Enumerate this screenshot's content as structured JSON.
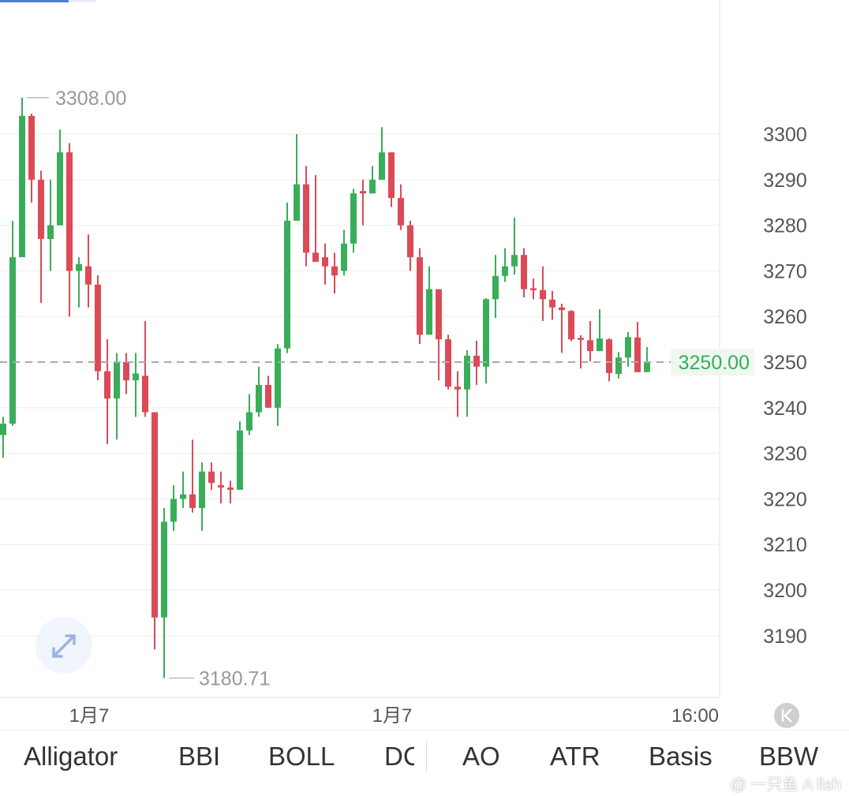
{
  "chart_data": {
    "type": "candlestick",
    "yticks": [
      3300,
      3290,
      3280,
      3270,
      3260,
      3250,
      3240,
      3230,
      3220,
      3210,
      3200,
      3190
    ],
    "ylim": [
      3175,
      3315
    ],
    "xlabels": [
      "1月7",
      "1月7",
      "16:00"
    ],
    "last_price": "3250.00",
    "high_label": "3308.00",
    "low_label": "3180.71",
    "grid": true,
    "colors": {
      "up": "#3aad5a",
      "down": "#dc4a57",
      "last_price": "#3aad5a"
    },
    "candles": [
      [
        3234,
        3238,
        3229,
        3236.5
      ],
      [
        3236.5,
        3281,
        3236,
        3273
      ],
      [
        3273,
        3308,
        3273,
        3304
      ],
      [
        3304,
        3304.5,
        3285,
        3290
      ],
      [
        3290,
        3292,
        3263,
        3277
      ],
      [
        3277,
        3290,
        3270,
        3280
      ],
      [
        3280,
        3301,
        3280,
        3296
      ],
      [
        3296,
        3298,
        3260,
        3270
      ],
      [
        3270,
        3273,
        3262,
        3271.5
      ],
      [
        3271,
        3278,
        3262,
        3267
      ],
      [
        3267,
        3269,
        3246,
        3248
      ],
      [
        3248,
        3255,
        3232,
        3242
      ],
      [
        3242,
        3252,
        3233,
        3250
      ],
      [
        3250,
        3252,
        3243,
        3246
      ],
      [
        3246,
        3252,
        3238,
        3247.5
      ],
      [
        3247,
        3259,
        3238,
        3239
      ],
      [
        3239,
        3239,
        3187,
        3194
      ],
      [
        3194,
        3218,
        3180.71,
        3215
      ],
      [
        3215,
        3223,
        3213,
        3220
      ],
      [
        3220,
        3226,
        3218,
        3221
      ],
      [
        3221,
        3233,
        3217,
        3218
      ],
      [
        3218,
        3228,
        3213,
        3226
      ],
      [
        3226,
        3228,
        3222,
        3223.5
      ],
      [
        3223,
        3226,
        3219,
        3222.5
      ],
      [
        3222.5,
        3224,
        3219,
        3222
      ],
      [
        3222,
        3237,
        3222,
        3235
      ],
      [
        3235,
        3243,
        3234,
        3239
      ],
      [
        3239,
        3249,
        3238,
        3245
      ],
      [
        3245,
        3247,
        3240,
        3240
      ],
      [
        3240,
        3254,
        3236,
        3253
      ],
      [
        3253,
        3285,
        3252,
        3281
      ],
      [
        3281,
        3300,
        3281,
        3289
      ],
      [
        3289,
        3293,
        3271,
        3274
      ],
      [
        3274,
        3291,
        3272,
        3272
      ],
      [
        3273,
        3276,
        3267,
        3271
      ],
      [
        3271,
        3274,
        3265,
        3269
      ],
      [
        3270,
        3279,
        3269,
        3276
      ],
      [
        3276,
        3288,
        3274,
        3287
      ],
      [
        3287.5,
        3290,
        3280,
        3287
      ],
      [
        3287,
        3293,
        3287,
        3290
      ],
      [
        3290,
        3301.5,
        3290,
        3296
      ],
      [
        3296,
        3296,
        3284,
        3286
      ],
      [
        3286,
        3289,
        3279,
        3280
      ],
      [
        3280,
        3281,
        3270,
        3273
      ],
      [
        3273,
        3275,
        3254,
        3256
      ],
      [
        3256,
        3271,
        3256,
        3266
      ],
      [
        3266,
        3266,
        3246,
        3255
      ],
      [
        3255,
        3256,
        3244,
        3244.6
      ],
      [
        3244.6,
        3248,
        3238,
        3244
      ],
      [
        3244,
        3252.6,
        3238,
        3251.4
      ],
      [
        3251.4,
        3254.7,
        3245,
        3249
      ],
      [
        3249,
        3264,
        3245.3,
        3263.8
      ],
      [
        3263.8,
        3273.5,
        3259.7,
        3268.9
      ],
      [
        3268.9,
        3275,
        3267.6,
        3271
      ],
      [
        3271,
        3281.7,
        3269.2,
        3273.5
      ],
      [
        3273.5,
        3275,
        3264.2,
        3266
      ],
      [
        3266.2,
        3268.3,
        3263.8,
        3266
      ],
      [
        3265.8,
        3271,
        3259,
        3263.8
      ],
      [
        3263.7,
        3265.6,
        3259.3,
        3262
      ],
      [
        3262,
        3262.8,
        3252,
        3261.4
      ],
      [
        3261.2,
        3261.4,
        3254.6,
        3255
      ],
      [
        3255.3,
        3255.9,
        3248.6,
        3255.2
      ],
      [
        3254.8,
        3259,
        3250.2,
        3252.4
      ],
      [
        3252.4,
        3261.6,
        3252.4,
        3255.2
      ],
      [
        3255,
        3255.2,
        3245.8,
        3247.6
      ],
      [
        3247.4,
        3252.2,
        3246.4,
        3251
      ],
      [
        3251,
        3256.6,
        3249,
        3255.5
      ],
      [
        3255.4,
        3258.8,
        3247.8,
        3247.8
      ],
      [
        3247.8,
        3253.3,
        3247.8,
        3250
      ]
    ]
  },
  "indicator_tabs": [
    "Alligator",
    "BBI",
    "BOLL",
    "DC",
    "AO",
    "ATR",
    "Basis",
    "BBW"
  ],
  "icons": {
    "expand": "expand-arrows-icon",
    "scroll_start": "scroll-to-start-icon"
  },
  "watermark": "@ 一只鱼 A fish"
}
